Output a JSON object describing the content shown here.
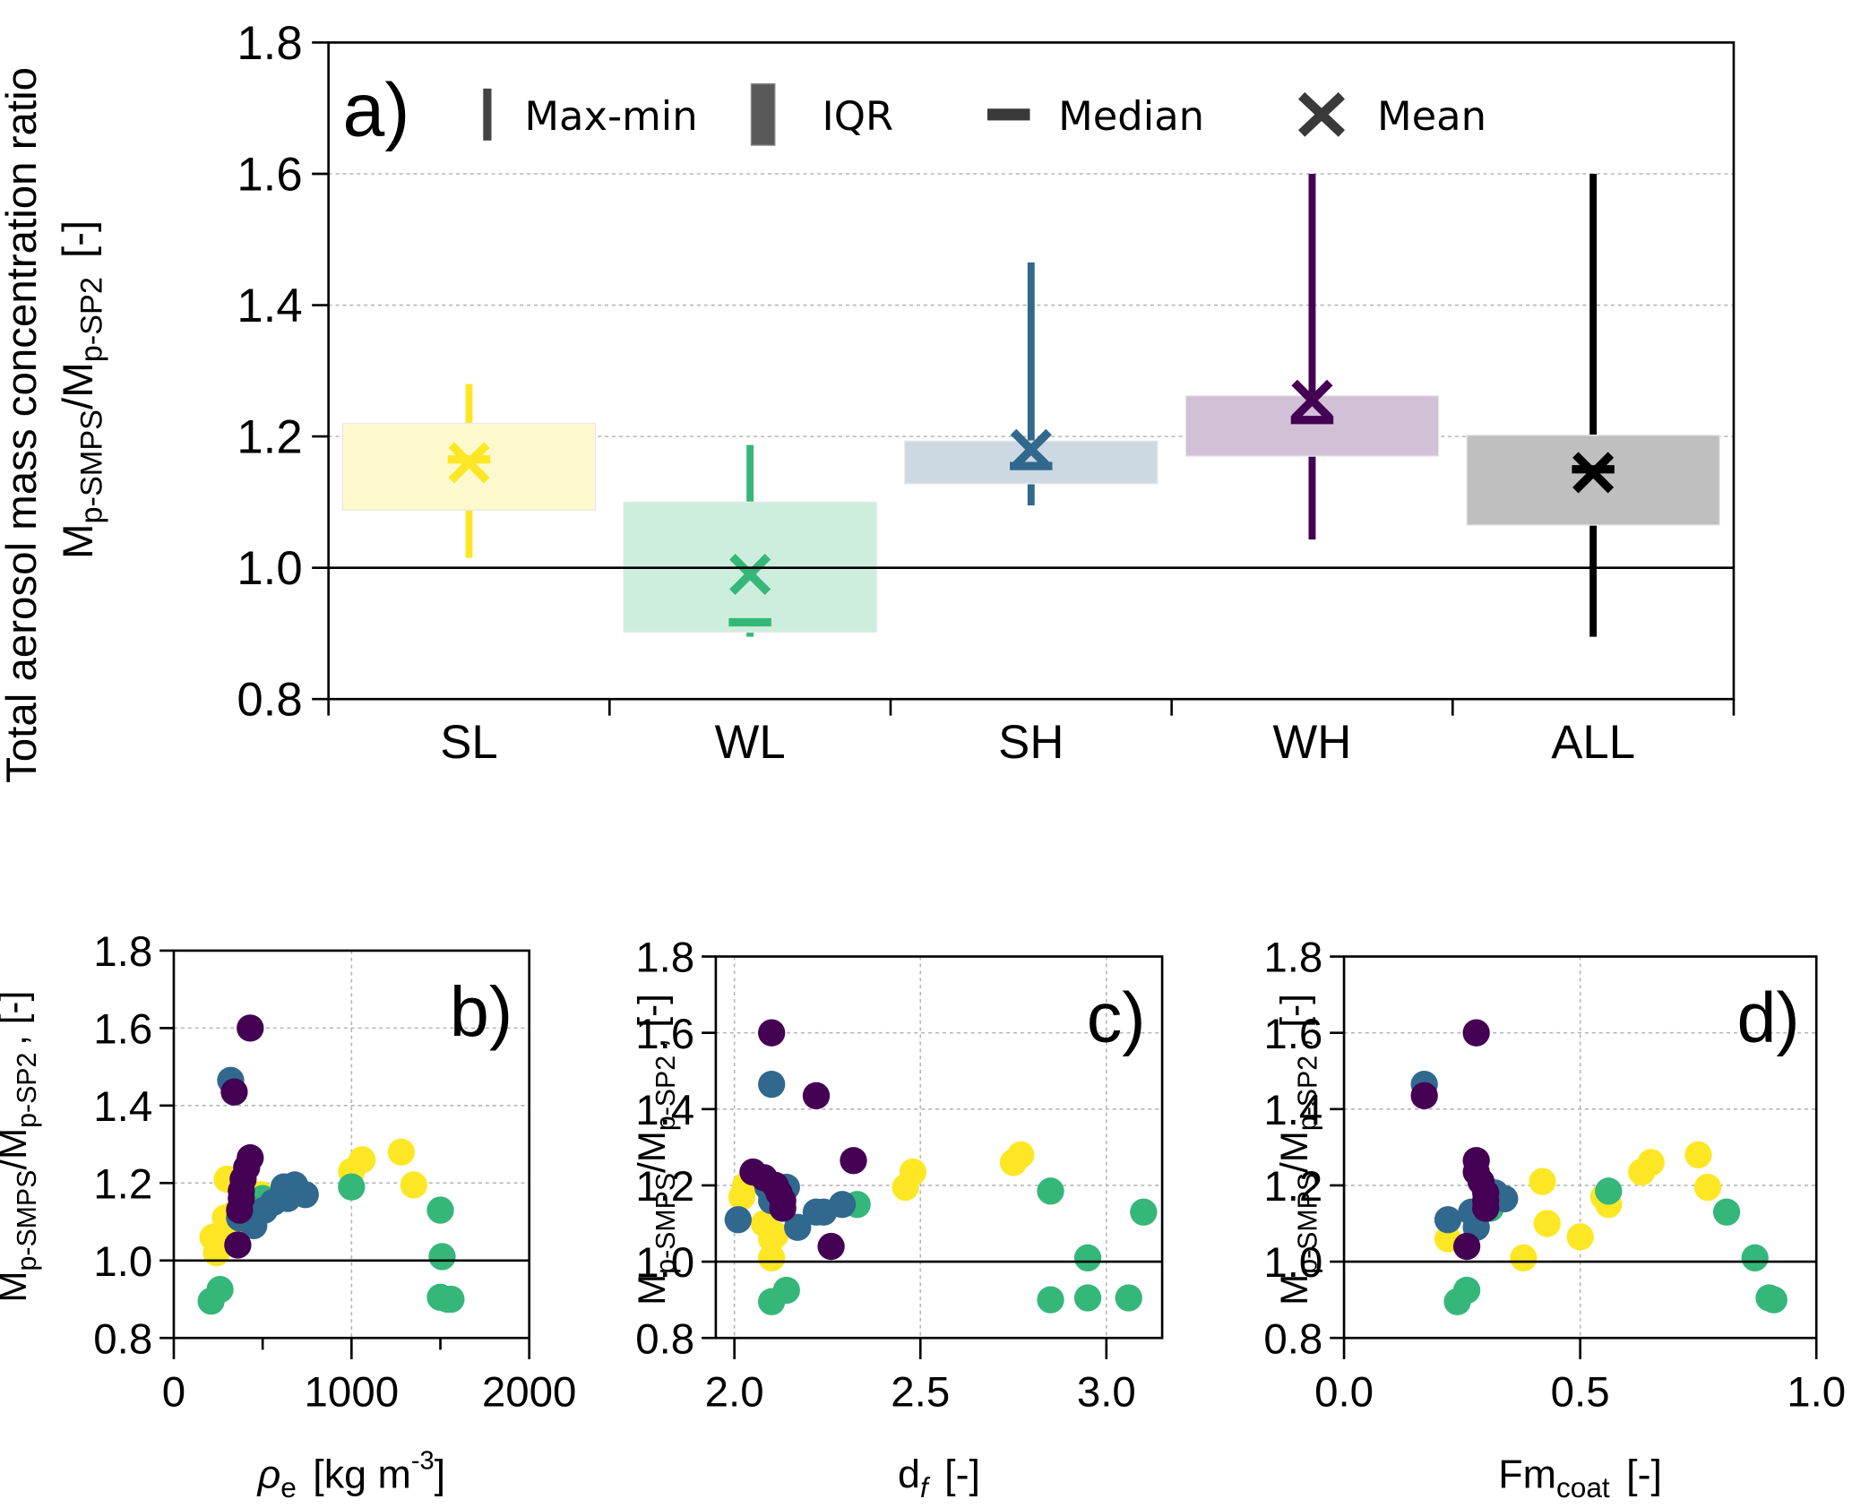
{
  "chart_data": [
    {
      "panel": "a)",
      "type": "box",
      "title": "",
      "ylabel_line1": "Total aerosol mass concentration ratio",
      "ylabel_line2_main": "M",
      "ylabel_line2_sub1": "p-SMPS",
      "ylabel_line2_mid": "/M",
      "ylabel_line2_sub2": "p-SP2",
      "ylabel_line2_unit": "[-]",
      "ylim": [
        0.8,
        1.8
      ],
      "yticks": [
        "0.8",
        "1.0",
        "1.2",
        "1.4",
        "1.6",
        "1.8"
      ],
      "ytick_values": [
        0.8,
        1.0,
        1.2,
        1.4,
        1.6,
        1.8
      ],
      "reference_line": 1.0,
      "grid": "horizontal dotted",
      "legend": [
        {
          "label": "Max-min",
          "symbol": "bar"
        },
        {
          "label": "IQR",
          "symbol": "box"
        },
        {
          "label": "Median",
          "symbol": "dash"
        },
        {
          "label": "Mean",
          "symbol": "x"
        }
      ],
      "legend_placement": "top",
      "categories": [
        "SL",
        "WL",
        "SH",
        "WH",
        "ALL"
      ],
      "series": [
        {
          "name": "SL",
          "color": "#fde725",
          "box_color": "#fef9cc",
          "max": 1.28,
          "min": 1.015,
          "q3": 1.22,
          "q1": 1.088,
          "median": 1.165,
          "mean": 1.16
        },
        {
          "name": "WL",
          "color": "#35b779",
          "box_color": "#cdeedd",
          "max": 1.187,
          "min": 0.895,
          "q3": 1.1,
          "q1": 0.902,
          "median": 0.917,
          "mean": 0.99
        },
        {
          "name": "SH",
          "color": "#31688e",
          "box_color": "#cdd9e2",
          "max": 1.465,
          "min": 1.095,
          "q3": 1.193,
          "q1": 1.128,
          "median": 1.155,
          "mean": 1.18
        },
        {
          "name": "WH",
          "color": "#440154",
          "box_color": "#d2c0d7",
          "max": 1.6,
          "min": 1.043,
          "q3": 1.262,
          "q1": 1.17,
          "median": 1.225,
          "mean": 1.255
        },
        {
          "name": "ALL",
          "color": "#000000",
          "box_color": "#bfbfbf",
          "max": 1.6,
          "min": 0.895,
          "q3": 1.202,
          "q1": 1.065,
          "median": 1.15,
          "mean": 1.145
        }
      ]
    },
    {
      "panel": "b)",
      "type": "scatter",
      "xlabel_main": "ρ",
      "xlabel_sub": "e",
      "xlabel_unit": "[kg m",
      "xlabel_sup": "-3",
      "xlabel_close": "]",
      "xlim": [
        0,
        2000
      ],
      "xticks": [
        "0",
        "1000",
        "2000"
      ],
      "xtick_values": [
        0,
        1000,
        2000
      ],
      "xminor": [
        500,
        1500
      ],
      "ylim": [
        0.8,
        1.8
      ],
      "yticks": [
        "0.8",
        "1.0",
        "1.2",
        "1.4",
        "1.6",
        "1.8"
      ],
      "ytick_values": [
        0.8,
        1.0,
        1.2,
        1.4,
        1.6,
        1.8
      ],
      "reference_line": 1.0,
      "grid": true,
      "series": [
        {
          "name": "SL",
          "color": "#fde725",
          "points": [
            [
              220,
              1.06
            ],
            [
              240,
              1.02
            ],
            [
              290,
              1.11
            ],
            [
              300,
              1.21
            ],
            [
              340,
              1.12
            ],
            [
              490,
              1.17
            ],
            [
              320,
              1.08
            ],
            [
              1000,
              1.23
            ],
            [
              1060,
              1.26
            ],
            [
              1280,
              1.28
            ],
            [
              1350,
              1.195
            ],
            [
              600,
              1.17
            ]
          ]
        },
        {
          "name": "WL",
          "color": "#35b779",
          "points": [
            [
              210,
              0.895
            ],
            [
              260,
              0.925
            ],
            [
              500,
              1.16
            ],
            [
              1000,
              1.19
            ],
            [
              1500,
              1.13
            ],
            [
              1510,
              1.01
            ],
            [
              1500,
              0.905
            ],
            [
              1540,
              0.9
            ],
            [
              1560,
              0.9
            ]
          ]
        },
        {
          "name": "SH",
          "color": "#31688e",
          "points": [
            [
              320,
              1.465
            ],
            [
              370,
              1.11
            ],
            [
              450,
              1.09
            ],
            [
              510,
              1.13
            ],
            [
              560,
              1.15
            ],
            [
              620,
              1.19
            ],
            [
              680,
              1.195
            ],
            [
              640,
              1.16
            ],
            [
              740,
              1.17
            ],
            [
              650,
              1.17
            ]
          ]
        },
        {
          "name": "WH",
          "color": "#440154",
          "points": [
            [
              430,
              1.6
            ],
            [
              340,
              1.435
            ],
            [
              430,
              1.265
            ],
            [
              410,
              1.24
            ],
            [
              390,
              1.21
            ],
            [
              380,
              1.18
            ],
            [
              380,
              1.16
            ],
            [
              370,
              1.13
            ],
            [
              360,
              1.04
            ]
          ]
        }
      ]
    },
    {
      "panel": "c)",
      "type": "scatter",
      "xlabel_main": "d",
      "xlabel_sub": "f",
      "xlabel_unit": "[-]",
      "xlim": [
        1.95,
        3.15
      ],
      "xticks": [
        "2.0",
        "2.5",
        "3.0"
      ],
      "xtick_values": [
        2.0,
        2.5,
        3.0
      ],
      "ylim": [
        0.8,
        1.8
      ],
      "yticks": [
        "0.8",
        "1.0",
        "1.2",
        "1.4",
        "1.6",
        "1.8"
      ],
      "ytick_values": [
        0.8,
        1.0,
        1.2,
        1.4,
        1.6,
        1.8
      ],
      "reference_line": 1.0,
      "grid": true,
      "series": [
        {
          "name": "SL",
          "color": "#fde725",
          "points": [
            [
              2.02,
              1.17
            ],
            [
              2.03,
              1.2
            ],
            [
              2.08,
              1.1
            ],
            [
              2.1,
              1.06
            ],
            [
              2.11,
              1.07
            ],
            [
              2.1,
              1.01
            ],
            [
              2.13,
              1.15
            ],
            [
              2.46,
              1.195
            ],
            [
              2.48,
              1.235
            ],
            [
              2.75,
              1.26
            ],
            [
              2.77,
              1.28
            ]
          ]
        },
        {
          "name": "WL",
          "color": "#35b779",
          "points": [
            [
              2.1,
              0.895
            ],
            [
              2.14,
              0.925
            ],
            [
              2.33,
              1.15
            ],
            [
              2.85,
              1.185
            ],
            [
              2.95,
              1.01
            ],
            [
              2.85,
              0.9
            ],
            [
              2.95,
              0.905
            ],
            [
              3.06,
              0.905
            ],
            [
              3.1,
              1.13
            ]
          ]
        },
        {
          "name": "SH",
          "color": "#31688e",
          "points": [
            [
              2.1,
              1.465
            ],
            [
              2.01,
              1.11
            ],
            [
              2.17,
              1.09
            ],
            [
              2.22,
              1.13
            ],
            [
              2.24,
              1.13
            ],
            [
              2.29,
              1.15
            ],
            [
              2.14,
              1.195
            ],
            [
              2.09,
              1.195
            ],
            [
              2.1,
              1.16
            ]
          ]
        },
        {
          "name": "WH",
          "color": "#440154",
          "points": [
            [
              2.1,
              1.6
            ],
            [
              2.22,
              1.435
            ],
            [
              2.32,
              1.265
            ],
            [
              2.05,
              1.235
            ],
            [
              2.08,
              1.22
            ],
            [
              2.11,
              1.2
            ],
            [
              2.12,
              1.18
            ],
            [
              2.13,
              1.16
            ],
            [
              2.13,
              1.14
            ],
            [
              2.26,
              1.04
            ]
          ]
        }
      ]
    },
    {
      "panel": "d)",
      "type": "scatter",
      "xlabel_main": "Fm",
      "xlabel_sub": "coat",
      "xlabel_unit": "[-]",
      "xlim": [
        0.0,
        1.0
      ],
      "xticks": [
        "0.0",
        "0.5",
        "1.0"
      ],
      "xtick_values": [
        0.0,
        0.5,
        1.0
      ],
      "ylim": [
        0.8,
        1.8
      ],
      "yticks": [
        "0.8",
        "1.0",
        "1.2",
        "1.4",
        "1.6",
        "1.8"
      ],
      "ytick_values": [
        0.8,
        1.0,
        1.2,
        1.4,
        1.6,
        1.8
      ],
      "reference_line": 1.0,
      "grid": true,
      "series": [
        {
          "name": "SL",
          "color": "#fde725",
          "points": [
            [
              0.22,
              1.06
            ],
            [
              0.38,
              1.01
            ],
            [
              0.42,
              1.21
            ],
            [
              0.43,
              1.1
            ],
            [
              0.5,
              1.065
            ],
            [
              0.55,
              1.17
            ],
            [
              0.56,
              1.15
            ],
            [
              0.63,
              1.235
            ],
            [
              0.65,
              1.26
            ],
            [
              0.75,
              1.28
            ],
            [
              0.77,
              1.195
            ]
          ]
        },
        {
          "name": "WL",
          "color": "#35b779",
          "points": [
            [
              0.24,
              0.895
            ],
            [
              0.26,
              0.925
            ],
            [
              0.31,
              1.14
            ],
            [
              0.56,
              1.185
            ],
            [
              0.81,
              1.13
            ],
            [
              0.87,
              1.01
            ],
            [
              0.9,
              0.905
            ],
            [
              0.91,
              0.9
            ]
          ]
        },
        {
          "name": "SH",
          "color": "#31688e",
          "points": [
            [
              0.17,
              1.465
            ],
            [
              0.22,
              1.11
            ],
            [
              0.27,
              1.13
            ],
            [
              0.28,
              1.09
            ],
            [
              0.3,
              1.19
            ],
            [
              0.32,
              1.18
            ],
            [
              0.34,
              1.165
            ]
          ]
        },
        {
          "name": "WH",
          "color": "#440154",
          "points": [
            [
              0.28,
              1.6
            ],
            [
              0.17,
              1.435
            ],
            [
              0.28,
              1.265
            ],
            [
              0.28,
              1.235
            ],
            [
              0.29,
              1.21
            ],
            [
              0.3,
              1.18
            ],
            [
              0.3,
              1.16
            ],
            [
              0.3,
              1.14
            ],
            [
              0.26,
              1.04
            ]
          ]
        }
      ]
    }
  ],
  "shared_ylabel": {
    "main": "M",
    "sub1": "p-SMPS",
    "mid": "/M",
    "sub2": "p-SP2",
    "unit": ", [-]"
  }
}
